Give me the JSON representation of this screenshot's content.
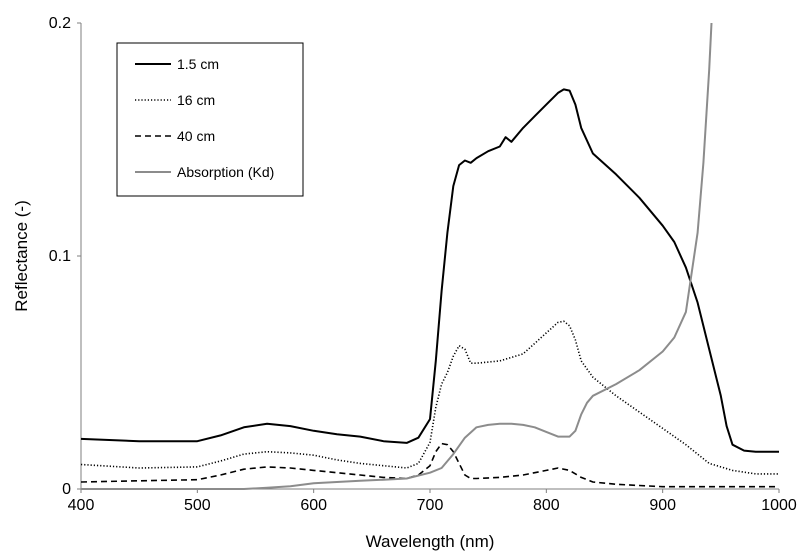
{
  "chart_data": {
    "type": "line",
    "title": "",
    "xlabel": "Wavelength (nm)",
    "ylabel": "Reflectance (-)",
    "xlim": [
      400,
      1000
    ],
    "ylim": [
      0,
      0.2
    ],
    "xticks": [
      "400",
      "500",
      "600",
      "700",
      "800",
      "900",
      "1000"
    ],
    "yticks": [
      "0",
      "0.1",
      "0.2"
    ],
    "grid": false,
    "legend": "top-left",
    "series": [
      {
        "name": "1.5 cm",
        "color": "#000000",
        "dash": "solid",
        "x": [
          400,
          450,
          500,
          520,
          540,
          560,
          580,
          600,
          620,
          640,
          660,
          680,
          690,
          700,
          705,
          710,
          715,
          720,
          725,
          730,
          735,
          740,
          750,
          760,
          765,
          770,
          780,
          790,
          800,
          810,
          815,
          820,
          825,
          830,
          840,
          860,
          880,
          900,
          910,
          920,
          930,
          940,
          950,
          955,
          960,
          970,
          980,
          1000
        ],
        "y": [
          0.0215,
          0.0205,
          0.0205,
          0.023,
          0.0265,
          0.028,
          0.027,
          0.025,
          0.0235,
          0.0225,
          0.0205,
          0.0198,
          0.022,
          0.03,
          0.055,
          0.085,
          0.11,
          0.13,
          0.139,
          0.141,
          0.14,
          0.142,
          0.145,
          0.147,
          0.151,
          0.149,
          0.155,
          0.16,
          0.165,
          0.17,
          0.1715,
          0.171,
          0.165,
          0.155,
          0.144,
          0.135,
          0.125,
          0.113,
          0.106,
          0.095,
          0.08,
          0.06,
          0.04,
          0.027,
          0.019,
          0.0165,
          0.016,
          0.016
        ]
      },
      {
        "name": "16 cm",
        "color": "#000000",
        "dash": "dotted",
        "x": [
          400,
          450,
          500,
          520,
          540,
          560,
          580,
          600,
          620,
          640,
          660,
          680,
          690,
          700,
          705,
          710,
          715,
          720,
          725,
          730,
          735,
          740,
          760,
          780,
          800,
          810,
          815,
          820,
          825,
          830,
          840,
          860,
          880,
          900,
          920,
          940,
          960,
          980,
          1000
        ],
        "y": [
          0.0105,
          0.009,
          0.0095,
          0.012,
          0.015,
          0.016,
          0.0155,
          0.0145,
          0.0125,
          0.011,
          0.01,
          0.009,
          0.011,
          0.02,
          0.035,
          0.045,
          0.05,
          0.057,
          0.0615,
          0.06,
          0.054,
          0.054,
          0.055,
          0.058,
          0.067,
          0.0715,
          0.072,
          0.07,
          0.064,
          0.055,
          0.048,
          0.04,
          0.033,
          0.026,
          0.019,
          0.011,
          0.008,
          0.0065,
          0.0065
        ]
      },
      {
        "name": "40 cm",
        "color": "#000000",
        "dash": "dashed",
        "x": [
          400,
          450,
          500,
          520,
          540,
          560,
          580,
          600,
          620,
          640,
          660,
          680,
          690,
          700,
          705,
          710,
          715,
          720,
          725,
          730,
          735,
          740,
          760,
          780,
          800,
          810,
          820,
          830,
          840,
          860,
          880,
          900,
          920,
          940,
          960,
          980,
          1000
        ],
        "y": [
          0.003,
          0.0035,
          0.004,
          0.006,
          0.0085,
          0.0095,
          0.009,
          0.008,
          0.007,
          0.006,
          0.005,
          0.0045,
          0.006,
          0.01,
          0.016,
          0.0195,
          0.019,
          0.016,
          0.011,
          0.006,
          0.0045,
          0.0045,
          0.005,
          0.006,
          0.008,
          0.009,
          0.008,
          0.005,
          0.003,
          0.002,
          0.0015,
          0.001,
          0.001,
          0.001,
          0.001,
          0.001,
          0.001
        ]
      },
      {
        "name": "Absorption (Kd)",
        "color": "#8c8c8c",
        "dash": "solid",
        "x": [
          400,
          450,
          500,
          540,
          560,
          580,
          600,
          620,
          640,
          660,
          680,
          700,
          710,
          720,
          730,
          740,
          750,
          760,
          770,
          780,
          790,
          800,
          810,
          820,
          825,
          830,
          835,
          840,
          860,
          880,
          900,
          910,
          920,
          930,
          935,
          940,
          942
        ],
        "y": [
          0.0,
          0.0,
          0.0,
          0.0,
          0.0005,
          0.0012,
          0.0025,
          0.003,
          0.0035,
          0.004,
          0.0045,
          0.007,
          0.009,
          0.015,
          0.022,
          0.0265,
          0.0275,
          0.028,
          0.028,
          0.0275,
          0.0265,
          0.0245,
          0.0225,
          0.0225,
          0.025,
          0.032,
          0.037,
          0.04,
          0.045,
          0.051,
          0.059,
          0.065,
          0.076,
          0.11,
          0.14,
          0.18,
          0.2
        ]
      }
    ]
  }
}
